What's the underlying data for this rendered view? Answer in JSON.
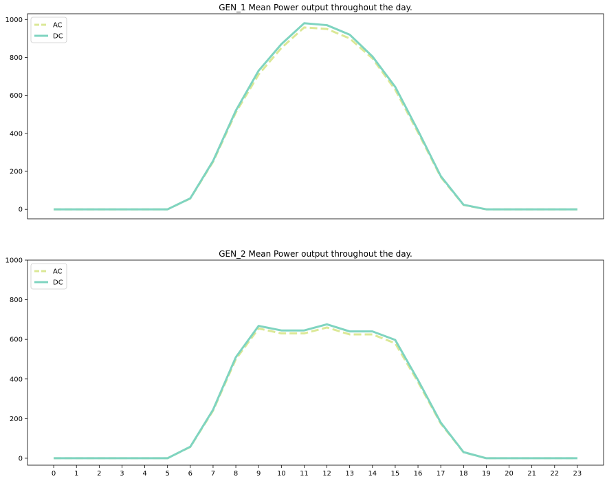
{
  "chart_data": [
    {
      "type": "line",
      "title": "GEN_1 Mean Power output throughout the day.",
      "xlabel": "",
      "ylabel": "",
      "x": [
        0,
        1,
        2,
        3,
        4,
        5,
        6,
        7,
        8,
        9,
        10,
        11,
        12,
        13,
        14,
        15,
        16,
        17,
        18,
        19,
        20,
        21,
        22,
        23
      ],
      "xlim": [
        -1.15,
        24.15
      ],
      "ylim": [
        -50,
        1030
      ],
      "yticks": [
        0,
        200,
        400,
        600,
        800,
        1000
      ],
      "x_tick_labels_shown": false,
      "legend": {
        "placement": "top-left",
        "entries": [
          "AC",
          "DC"
        ]
      },
      "grid": false,
      "series": [
        {
          "name": "AC",
          "style": "dashed",
          "color": "#dbe896",
          "values": [
            0,
            0,
            0,
            0,
            0,
            0,
            57,
            250,
            510,
            710,
            850,
            958,
            950,
            900,
            795,
            630,
            405,
            170,
            23,
            0,
            0,
            0,
            0,
            0
          ]
        },
        {
          "name": "DC",
          "style": "solid",
          "color": "#7fd4c0",
          "values": [
            0,
            0,
            0,
            0,
            0,
            0,
            58,
            255,
            520,
            730,
            870,
            980,
            970,
            920,
            805,
            645,
            415,
            175,
            24,
            0,
            0,
            0,
            0,
            0
          ]
        }
      ]
    },
    {
      "type": "line",
      "title": "GEN_2 Mean Power output throughout the day.",
      "xlabel": "",
      "ylabel": "",
      "x": [
        0,
        1,
        2,
        3,
        4,
        5,
        6,
        7,
        8,
        9,
        10,
        11,
        12,
        13,
        14,
        15,
        16,
        17,
        18,
        19,
        20,
        21,
        22,
        23
      ],
      "xlim": [
        -1.15,
        24.15
      ],
      "ylim": [
        -35,
        1000
      ],
      "yticks": [
        0,
        200,
        400,
        600,
        800,
        1000
      ],
      "x_tick_labels_shown": true,
      "legend": {
        "placement": "top-left",
        "entries": [
          "AC",
          "DC"
        ]
      },
      "grid": false,
      "series": [
        {
          "name": "AC",
          "style": "dashed",
          "color": "#dbe896",
          "values": [
            0,
            0,
            0,
            0,
            0,
            0,
            57,
            240,
            500,
            655,
            630,
            630,
            660,
            625,
            625,
            580,
            385,
            175,
            30,
            0,
            0,
            0,
            0,
            0
          ]
        },
        {
          "name": "DC",
          "style": "solid",
          "color": "#7fd4c0",
          "values": [
            0,
            0,
            0,
            0,
            0,
            0,
            58,
            245,
            510,
            668,
            645,
            645,
            676,
            640,
            640,
            597,
            395,
            180,
            31,
            0,
            0,
            0,
            0,
            0
          ]
        }
      ]
    }
  ]
}
